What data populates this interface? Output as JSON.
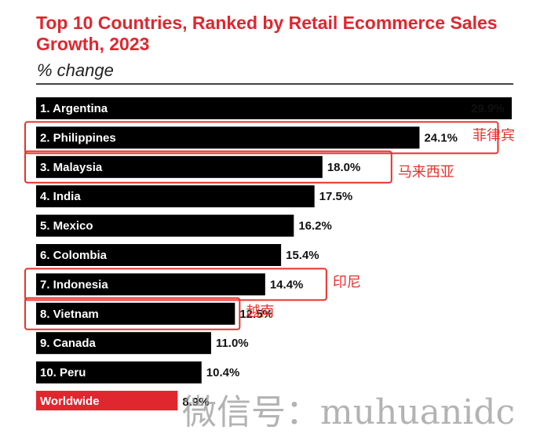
{
  "chart_data": {
    "type": "bar",
    "orientation": "horizontal",
    "title": "Top 10 Countries, Ranked by Retail Ecommerce Sales Growth, 2023",
    "subtitle": "% change",
    "categories": [
      "1. Argentina",
      "2. Philippines",
      "3. Malaysia",
      "4. India",
      "5. Mexico",
      "6. Colombia",
      "7. Indonesia",
      "8. Vietnam",
      "9. Canada",
      "10. Peru",
      "Worldwide"
    ],
    "values": [
      29.9,
      24.1,
      18.0,
      17.5,
      16.2,
      15.4,
      14.4,
      12.5,
      11.0,
      10.4,
      8.9
    ],
    "value_labels": [
      "29.9%",
      "24.1%",
      "18.0%",
      "17.5%",
      "16.2%",
      "15.4%",
      "14.4%",
      "12.5%",
      "11.0%",
      "10.4%",
      "8.9%"
    ],
    "colors": {
      "bar": "#000000",
      "worldwide_bar": "#e0262f",
      "title": "#e0262f",
      "annotation": "#e8312a"
    },
    "highlighted_bar_color_category": "Worldwide",
    "xlim": [
      0,
      29.9
    ],
    "grid": false,
    "legend": "none"
  },
  "annotations": [
    {
      "category": "2. Philippines",
      "text": "菲律宾"
    },
    {
      "category": "3. Malaysia",
      "text": "马来西亚"
    },
    {
      "category": "7. Indonesia",
      "text": "印尼"
    },
    {
      "category": "8. Vietnam",
      "text": "越南"
    }
  ],
  "watermark": "微信号：muhuanidc"
}
